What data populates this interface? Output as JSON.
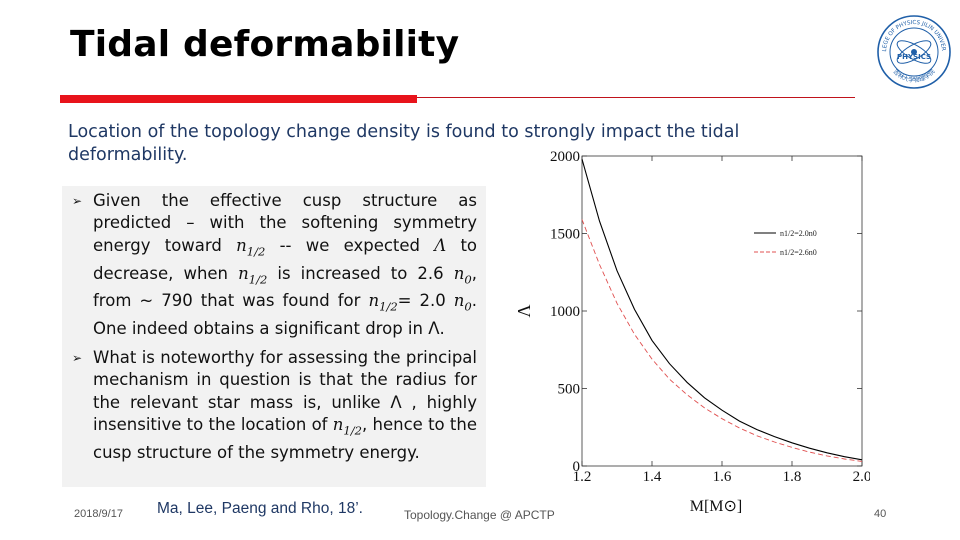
{
  "slide": {
    "title": "Tidal deformability",
    "intro": "Location of the topology change density is found to strongly impact the tidal deformability."
  },
  "bullets": [
    {
      "parts": [
        {
          "t": "text",
          "v": "Given the effective cusp structure as predicted – with the softening symmetry energy toward "
        },
        {
          "t": "math",
          "v": "n",
          "sub": "1/2"
        },
        {
          "t": "text",
          "v": " -- we expected "
        },
        {
          "t": "math",
          "v": "Λ"
        },
        {
          "t": "text",
          "v": " to decrease, when "
        },
        {
          "t": "math",
          "v": "n",
          "sub": "1/2"
        },
        {
          "t": "text",
          "v": " is increased to 2.6 "
        },
        {
          "t": "math",
          "v": "n",
          "sub": "0"
        },
        {
          "t": "text",
          "v": ", from ~ 790 that was found for "
        },
        {
          "t": "math",
          "v": "n",
          "sub": "1/2"
        },
        {
          "t": "text",
          "v": "= 2.0 "
        },
        {
          "t": "math",
          "v": "n",
          "sub": "0"
        },
        {
          "t": "text",
          "v": ". One indeed obtains a significant drop in Λ."
        }
      ]
    },
    {
      "parts": [
        {
          "t": "text",
          "v": "What is noteworthy for assessing the principal mechanism in question is that the radius for the relevant star mass is, unlike Λ , highly insensitive to the location of "
        },
        {
          "t": "math",
          "v": "n",
          "sub": "1/2"
        },
        {
          "t": "text",
          "v": ", hence to the cusp structure of the symmetry energy."
        }
      ]
    }
  ],
  "footer": {
    "date": "2018/9/17",
    "citation": "Ma, Lee, Paeng and Rho, 18’.",
    "center": "Topology.Change @ APCTP",
    "page": "40"
  },
  "logo": {
    "icon": "university-seal",
    "text_top": "COLLEGE OF PHYSICS JILIN UNIVERSITY",
    "text_center": "PHYSICS",
    "text_bottom": "吉林大学物理学院",
    "color": "#1f5fa8"
  },
  "colors": {
    "title": "#000000",
    "accent_red": "#e8131b",
    "intro_text": "#1f3864",
    "bullet_bg": "#f2f2f2",
    "series_solid": "#000000",
    "series_dashed": "#e05050"
  },
  "chart_data": {
    "type": "line",
    "xlabel": "M[M⊙]",
    "ylabel": "Λ",
    "xlim": [
      1.2,
      2.0
    ],
    "ylim": [
      0,
      2000
    ],
    "xticks": [
      "1.2",
      "1.4",
      "1.6",
      "1.8",
      "2.0"
    ],
    "yticks": [
      "0",
      "500",
      "1000",
      "1500",
      "2000"
    ],
    "legend_position": "top-right",
    "series": [
      {
        "name": "n1/2=2.0n0",
        "style": "solid",
        "color": "#000000",
        "x": [
          1.2,
          1.25,
          1.3,
          1.35,
          1.4,
          1.45,
          1.5,
          1.55,
          1.6,
          1.65,
          1.7,
          1.75,
          1.8,
          1.85,
          1.9,
          1.95,
          2.0
        ],
        "y": [
          1980,
          1580,
          1260,
          1010,
          810,
          660,
          540,
          440,
          360,
          290,
          235,
          190,
          150,
          115,
          85,
          60,
          40
        ]
      },
      {
        "name": "n1/2=2.6n0",
        "style": "dashed",
        "color": "#e05050",
        "x": [
          1.2,
          1.25,
          1.3,
          1.35,
          1.4,
          1.45,
          1.5,
          1.55,
          1.6,
          1.65,
          1.7,
          1.75,
          1.8,
          1.85,
          1.9,
          1.95,
          2.0
        ],
        "y": [
          1590,
          1300,
          1050,
          850,
          690,
          560,
          460,
          375,
          305,
          245,
          195,
          155,
          120,
          90,
          65,
          45,
          30
        ]
      }
    ]
  }
}
